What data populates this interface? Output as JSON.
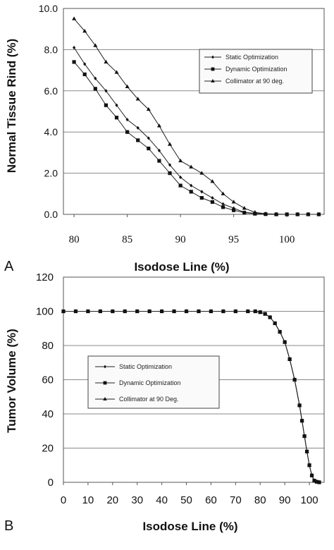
{
  "figure": {
    "panel_a_label": "A",
    "panel_b_label": "B"
  },
  "chart_data": [
    {
      "type": "line",
      "panel": "A",
      "xlabel": "Isodose Line (%)",
      "ylabel": "Normal Tissue Rind (%)",
      "xlim": [
        79,
        103.5
      ],
      "ylim": [
        0,
        10
      ],
      "xticks": [
        80,
        85,
        90,
        95,
        100
      ],
      "xtick_labels": [
        "80",
        "85",
        "90",
        "95",
        "100"
      ],
      "yticks": [
        0,
        2,
        4,
        6,
        8,
        10
      ],
      "ytick_labels": [
        "0.0",
        "2.0",
        "4.0",
        "6.0",
        "8.0",
        "10.0"
      ],
      "grid": "horizontal",
      "legend_position": "upper-right",
      "series": [
        {
          "name": "Static Optimization",
          "marker": "diamond",
          "x": [
            80,
            81,
            82,
            83,
            84,
            85,
            86,
            87,
            88,
            89,
            90,
            91,
            92,
            93,
            94,
            95,
            96,
            97,
            98,
            99,
            100,
            101,
            102,
            103
          ],
          "y": [
            8.1,
            7.3,
            6.6,
            6.0,
            5.3,
            4.6,
            4.2,
            3.7,
            3.1,
            2.4,
            1.8,
            1.4,
            1.1,
            0.8,
            0.5,
            0.3,
            0.1,
            0.05,
            0.02,
            0.01,
            0.0,
            0.0,
            0.0,
            0.0
          ]
        },
        {
          "name": "Dynamic Optimization",
          "marker": "square",
          "x": [
            80,
            81,
            82,
            83,
            84,
            85,
            86,
            87,
            88,
            89,
            90,
            91,
            92,
            93,
            94,
            95,
            96,
            97,
            98,
            99,
            100,
            101,
            102,
            103
          ],
          "y": [
            7.4,
            6.8,
            6.1,
            5.3,
            4.7,
            4.0,
            3.6,
            3.2,
            2.6,
            2.0,
            1.4,
            1.1,
            0.8,
            0.6,
            0.35,
            0.2,
            0.08,
            0.03,
            0.01,
            0.0,
            0.0,
            0.0,
            0.0,
            0.0
          ]
        },
        {
          "name": "Collimator at 90 deg.",
          "marker": "triangle",
          "x": [
            80,
            81,
            82,
            83,
            84,
            85,
            86,
            87,
            88,
            89,
            90,
            91,
            92,
            93,
            94,
            95,
            96,
            97,
            98,
            99,
            100,
            101,
            102,
            103
          ],
          "y": [
            9.5,
            8.9,
            8.2,
            7.4,
            6.9,
            6.2,
            5.6,
            5.1,
            4.3,
            3.4,
            2.6,
            2.3,
            2.0,
            1.6,
            1.0,
            0.6,
            0.3,
            0.1,
            0.03,
            0.01,
            0.0,
            0.0,
            0.0,
            0.0
          ]
        }
      ]
    },
    {
      "type": "line",
      "panel": "B",
      "xlabel": "Isodose Line (%)",
      "ylabel": "Tumor Volume (%)",
      "xlim": [
        0,
        106
      ],
      "ylim": [
        0,
        120
      ],
      "xticks": [
        0,
        10,
        20,
        30,
        40,
        50,
        60,
        70,
        80,
        90,
        100
      ],
      "xtick_labels": [
        "0",
        "10",
        "20",
        "30",
        "40",
        "50",
        "60",
        "70",
        "80",
        "90",
        "100"
      ],
      "yticks": [
        0,
        20,
        40,
        60,
        80,
        100,
        120
      ],
      "ytick_labels": [
        "0",
        "20",
        "40",
        "60",
        "80",
        "100",
        "120"
      ],
      "grid": "horizontal",
      "legend_position": "center-left",
      "series": [
        {
          "name": "Static Optimization",
          "marker": "diamond",
          "x": [
            0,
            5,
            10,
            15,
            20,
            25,
            30,
            35,
            40,
            45,
            50,
            55,
            60,
            65,
            70,
            75,
            78,
            80,
            82,
            84,
            86,
            88,
            90,
            92,
            94,
            96,
            97,
            98,
            99,
            100,
            101,
            102,
            103,
            104
          ],
          "y": [
            100,
            100,
            100,
            100,
            100,
            100,
            100,
            100,
            100,
            100,
            100,
            100,
            100,
            100,
            100,
            100,
            100,
            99.5,
            98.5,
            96.5,
            93,
            88,
            82,
            72,
            60,
            45,
            36,
            27,
            18,
            10,
            4,
            1,
            0.3,
            0
          ]
        },
        {
          "name": "Dynamic Optimization",
          "marker": "square",
          "x": [
            0,
            5,
            10,
            15,
            20,
            25,
            30,
            35,
            40,
            45,
            50,
            55,
            60,
            65,
            70,
            75,
            78,
            80,
            82,
            84,
            86,
            88,
            90,
            92,
            94,
            96,
            97,
            98,
            99,
            100,
            101,
            102,
            103,
            104
          ],
          "y": [
            100,
            100,
            100,
            100,
            100,
            100,
            100,
            100,
            100,
            100,
            100,
            100,
            100,
            100,
            100,
            100,
            100,
            99.5,
            98.5,
            96.5,
            93,
            88,
            82,
            72,
            60,
            45,
            36,
            27,
            18,
            10,
            4,
            1,
            0.3,
            0
          ]
        },
        {
          "name": "Collimator at 90 Deg.",
          "marker": "triangle",
          "x": [
            0,
            5,
            10,
            15,
            20,
            25,
            30,
            35,
            40,
            45,
            50,
            55,
            60,
            65,
            70,
            75,
            78,
            80,
            82,
            84,
            86,
            88,
            90,
            92,
            94,
            96,
            97,
            98,
            99,
            100,
            101,
            102,
            103,
            104
          ],
          "y": [
            100,
            100,
            100,
            100,
            100,
            100,
            100,
            100,
            100,
            100,
            100,
            100,
            100,
            100,
            100,
            100,
            100,
            99.5,
            98.5,
            96.5,
            93,
            88,
            82,
            72,
            60,
            45,
            36,
            27,
            18,
            10,
            4,
            1,
            0.3,
            0
          ]
        }
      ]
    }
  ]
}
